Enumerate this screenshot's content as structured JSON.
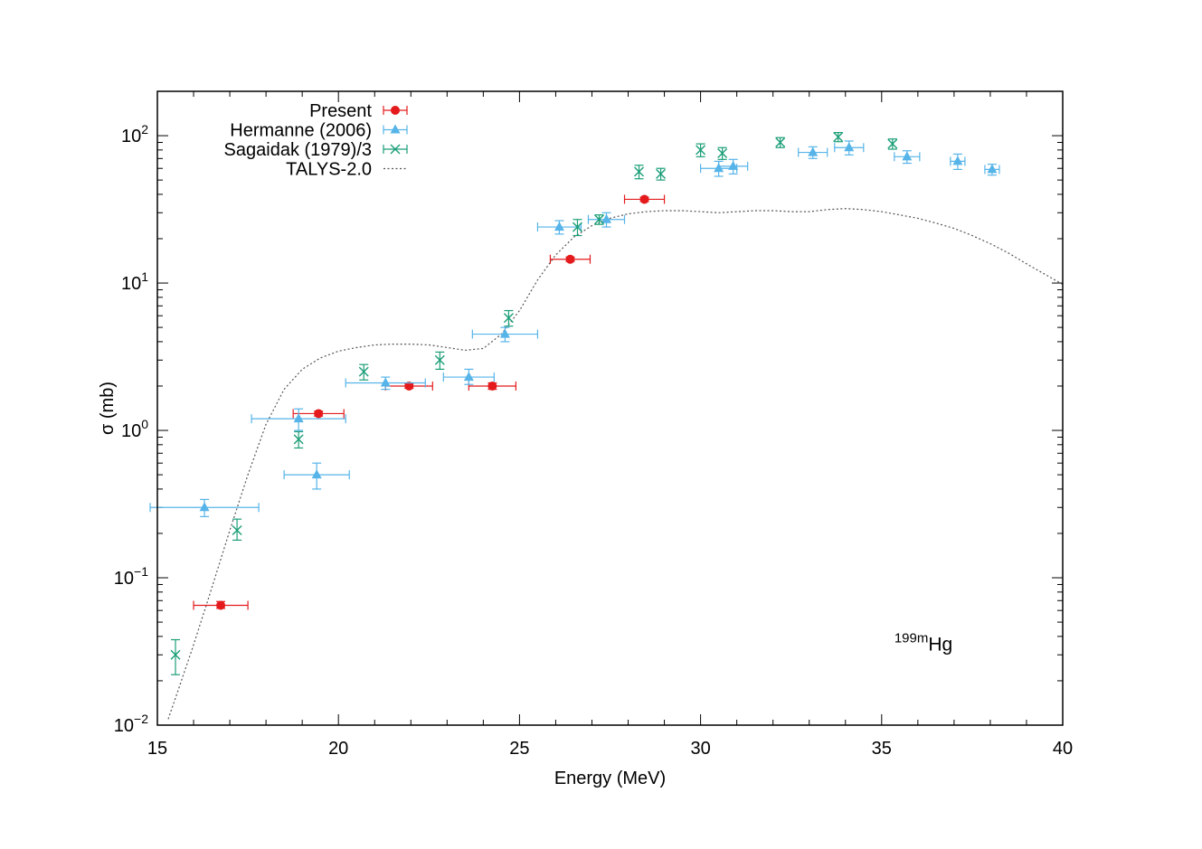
{
  "chart_data": {
    "type": "scatter",
    "xlabel": "Energy (MeV)",
    "ylabel": "σ (mb)",
    "xlim": [
      15,
      40
    ],
    "ylim": [
      0.01,
      200
    ],
    "yscale": "log",
    "x_ticks": [
      "15",
      "20",
      "25",
      "30",
      "35",
      "40"
    ],
    "y_ticks": [
      {
        "base": "10",
        "exp": "−2",
        "value": 0.01
      },
      {
        "base": "10",
        "exp": "−1",
        "value": 0.1
      },
      {
        "base": "10",
        "exp": "0",
        "value": 1
      },
      {
        "base": "10",
        "exp": "1",
        "value": 10
      },
      {
        "base": "10",
        "exp": "2",
        "value": 100
      }
    ],
    "legend_position": "top-left",
    "annotation": {
      "sup": "199m",
      "text": "Hg"
    },
    "series": [
      {
        "name": "Present",
        "color": "#e41a1c",
        "marker": "circle",
        "points": [
          {
            "x": 16.75,
            "y": 0.065,
            "xerr": 0.75,
            "ylo": 0.062,
            "yhi": 0.069
          },
          {
            "x": 19.45,
            "y": 1.3,
            "xerr": 0.7,
            "ylo": 1.25,
            "yhi": 1.35
          },
          {
            "x": 21.95,
            "y": 2.0,
            "xerr": 0.65,
            "ylo": 1.93,
            "yhi": 2.07
          },
          {
            "x": 24.25,
            "y": 2.0,
            "xerr": 0.65,
            "ylo": 1.9,
            "yhi": 2.1
          },
          {
            "x": 26.4,
            "y": 14.5,
            "xerr": 0.55,
            "ylo": 14.0,
            "yhi": 15.0
          },
          {
            "x": 28.45,
            "y": 37.0,
            "xerr": 0.55,
            "ylo": 35.8,
            "yhi": 38.2
          }
        ]
      },
      {
        "name": "Hermanne (2006)",
        "color": "#56b4e9",
        "marker": "triangle",
        "points": [
          {
            "x": 16.3,
            "y": 0.3,
            "xerr": 1.5,
            "ylo": 0.26,
            "yhi": 0.34
          },
          {
            "x": 18.9,
            "y": 1.2,
            "xerr": 1.3,
            "ylo": 1.0,
            "yhi": 1.4
          },
          {
            "x": 19.4,
            "y": 0.5,
            "xerr": 0.9,
            "ylo": 0.4,
            "yhi": 0.6
          },
          {
            "x": 21.3,
            "y": 2.1,
            "xerr": 1.1,
            "ylo": 1.9,
            "yhi": 2.3
          },
          {
            "x": 23.6,
            "y": 2.3,
            "xerr": 0.7,
            "ylo": 2.05,
            "yhi": 2.6
          },
          {
            "x": 24.6,
            "y": 4.5,
            "xerr": 0.9,
            "ylo": 4.0,
            "yhi": 5.0
          },
          {
            "x": 26.1,
            "y": 24.0,
            "xerr": 0.6,
            "ylo": 21.5,
            "yhi": 26.5
          },
          {
            "x": 27.4,
            "y": 27.0,
            "xerr": 0.5,
            "ylo": 24.0,
            "yhi": 30.0
          },
          {
            "x": 30.5,
            "y": 60.0,
            "xerr": 0.5,
            "ylo": 53.0,
            "yhi": 67.0
          },
          {
            "x": 30.9,
            "y": 62.0,
            "xerr": 0.4,
            "ylo": 55.0,
            "yhi": 69.0
          },
          {
            "x": 33.1,
            "y": 77.0,
            "xerr": 0.4,
            "ylo": 70.0,
            "yhi": 84.0
          },
          {
            "x": 34.1,
            "y": 83.0,
            "xerr": 0.4,
            "ylo": 74.0,
            "yhi": 92.0
          },
          {
            "x": 35.7,
            "y": 72.0,
            "xerr": 0.35,
            "ylo": 65.0,
            "yhi": 79.0
          },
          {
            "x": 37.1,
            "y": 67.0,
            "xerr": 0.2,
            "ylo": 59.0,
            "yhi": 75.0
          },
          {
            "x": 38.05,
            "y": 59.0,
            "xerr": 0.2,
            "ylo": 54.0,
            "yhi": 64.0
          }
        ]
      },
      {
        "name": "Sagaidak (1979)/3",
        "color": "#1b9e77",
        "marker": "cross",
        "points": [
          {
            "x": 15.5,
            "y": 0.03,
            "xerr": 0,
            "ylo": 0.022,
            "yhi": 0.038
          },
          {
            "x": 17.2,
            "y": 0.21,
            "xerr": 0,
            "ylo": 0.18,
            "yhi": 0.25
          },
          {
            "x": 18.9,
            "y": 0.87,
            "xerr": 0,
            "ylo": 0.76,
            "yhi": 0.98
          },
          {
            "x": 20.7,
            "y": 2.5,
            "xerr": 0,
            "ylo": 2.2,
            "yhi": 2.8
          },
          {
            "x": 22.8,
            "y": 3.0,
            "xerr": 0,
            "ylo": 2.6,
            "yhi": 3.4
          },
          {
            "x": 24.7,
            "y": 5.8,
            "xerr": 0,
            "ylo": 5.1,
            "yhi": 6.5
          },
          {
            "x": 26.6,
            "y": 24.0,
            "xerr": 0,
            "ylo": 21.0,
            "yhi": 27.0
          },
          {
            "x": 27.2,
            "y": 27.0,
            "xerr": 0,
            "ylo": 25.0,
            "yhi": 29.0
          },
          {
            "x": 28.3,
            "y": 57.0,
            "xerr": 0,
            "ylo": 51.0,
            "yhi": 63.0
          },
          {
            "x": 28.9,
            "y": 55.0,
            "xerr": 0,
            "ylo": 50.0,
            "yhi": 60.0
          },
          {
            "x": 30.0,
            "y": 80.0,
            "xerr": 0,
            "ylo": 72.0,
            "yhi": 88.0
          },
          {
            "x": 30.6,
            "y": 76.0,
            "xerr": 0,
            "ylo": 69.0,
            "yhi": 83.0
          },
          {
            "x": 32.2,
            "y": 90.0,
            "xerr": 0,
            "ylo": 83.0,
            "yhi": 97.0
          },
          {
            "x": 33.8,
            "y": 98.0,
            "xerr": 0,
            "ylo": 91.0,
            "yhi": 105.0
          },
          {
            "x": 35.3,
            "y": 88.0,
            "xerr": 0,
            "ylo": 81.0,
            "yhi": 95.0
          }
        ]
      },
      {
        "name": "TALYS-2.0",
        "color": "#555555",
        "marker": "line",
        "x": [
          15.3,
          15.6,
          16.0,
          16.5,
          17.0,
          17.5,
          18.0,
          18.5,
          19.0,
          19.5,
          20.0,
          20.5,
          21.0,
          21.5,
          22.0,
          22.5,
          23.0,
          23.5,
          24.0,
          24.5,
          25.0,
          25.5,
          26.0,
          26.5,
          27.0,
          27.5,
          28.0,
          28.5,
          29.0,
          29.5,
          30.0,
          30.5,
          31.0,
          31.5,
          32.0,
          32.5,
          33.0,
          33.5,
          34.0,
          34.5,
          35.0,
          35.5,
          36.0,
          36.5,
          37.0,
          37.5,
          38.0,
          38.5,
          39.0,
          39.5,
          40.0
        ],
        "y": [
          0.011,
          0.018,
          0.035,
          0.085,
          0.21,
          0.5,
          1.1,
          1.9,
          2.6,
          3.1,
          3.45,
          3.65,
          3.8,
          3.85,
          3.85,
          3.8,
          3.65,
          3.5,
          3.6,
          4.5,
          6.5,
          10.5,
          15.5,
          20.5,
          24.5,
          27.5,
          29.5,
          30.5,
          31.0,
          31.0,
          30.5,
          30.0,
          30.5,
          31.0,
          31.0,
          30.5,
          30.5,
          31.5,
          32.0,
          31.5,
          30.5,
          29.0,
          27.5,
          25.5,
          23.5,
          21.0,
          18.5,
          16.0,
          13.5,
          11.5,
          9.8
        ]
      }
    ]
  }
}
